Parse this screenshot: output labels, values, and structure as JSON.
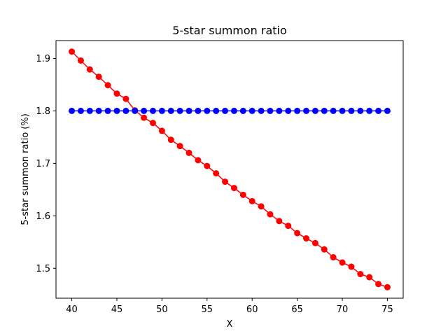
{
  "chart_data": {
    "type": "line",
    "title": "5-star summon ratio",
    "xlabel": "X",
    "ylabel": "5-star summon ratio (%)",
    "xlim": [
      38.25,
      76.75
    ],
    "ylim": [
      1.443,
      1.934
    ],
    "xticks": [
      40,
      45,
      50,
      55,
      60,
      65,
      70,
      75
    ],
    "yticks": [
      1.5,
      1.6,
      1.7,
      1.8,
      1.9
    ],
    "xtick_labels": [
      "40",
      "45",
      "50",
      "55",
      "60",
      "65",
      "70",
      "75"
    ],
    "ytick_labels": [
      "1.5",
      "1.6",
      "1.7",
      "1.8",
      "1.9"
    ],
    "grid": false,
    "legend": false,
    "x": [
      40,
      41,
      42,
      43,
      44,
      45,
      46,
      47,
      48,
      49,
      50,
      51,
      52,
      53,
      54,
      55,
      56,
      57,
      58,
      59,
      60,
      61,
      62,
      63,
      64,
      65,
      66,
      67,
      68,
      69,
      70,
      71,
      72,
      73,
      74,
      75
    ],
    "series": [
      {
        "color": "#ff0000",
        "values": [
          1.913,
          1.896,
          1.879,
          1.865,
          1.849,
          1.833,
          1.823,
          1.801,
          1.787,
          1.777,
          1.762,
          1.745,
          1.733,
          1.72,
          1.706,
          1.695,
          1.681,
          1.665,
          1.653,
          1.64,
          1.628,
          1.618,
          1.603,
          1.59,
          1.581,
          1.567,
          1.557,
          1.548,
          1.536,
          1.521,
          1.511,
          1.503,
          1.489,
          1.483,
          1.47,
          1.464
        ]
      },
      {
        "color": "#0000ff",
        "values": [
          1.8,
          1.8,
          1.8,
          1.8,
          1.8,
          1.8,
          1.8,
          1.8,
          1.8,
          1.8,
          1.8,
          1.8,
          1.8,
          1.8,
          1.8,
          1.8,
          1.8,
          1.8,
          1.8,
          1.8,
          1.8,
          1.8,
          1.8,
          1.8,
          1.8,
          1.8,
          1.8,
          1.8,
          1.8,
          1.8,
          1.8,
          1.8,
          1.8,
          1.8,
          1.8,
          1.8
        ]
      }
    ]
  }
}
